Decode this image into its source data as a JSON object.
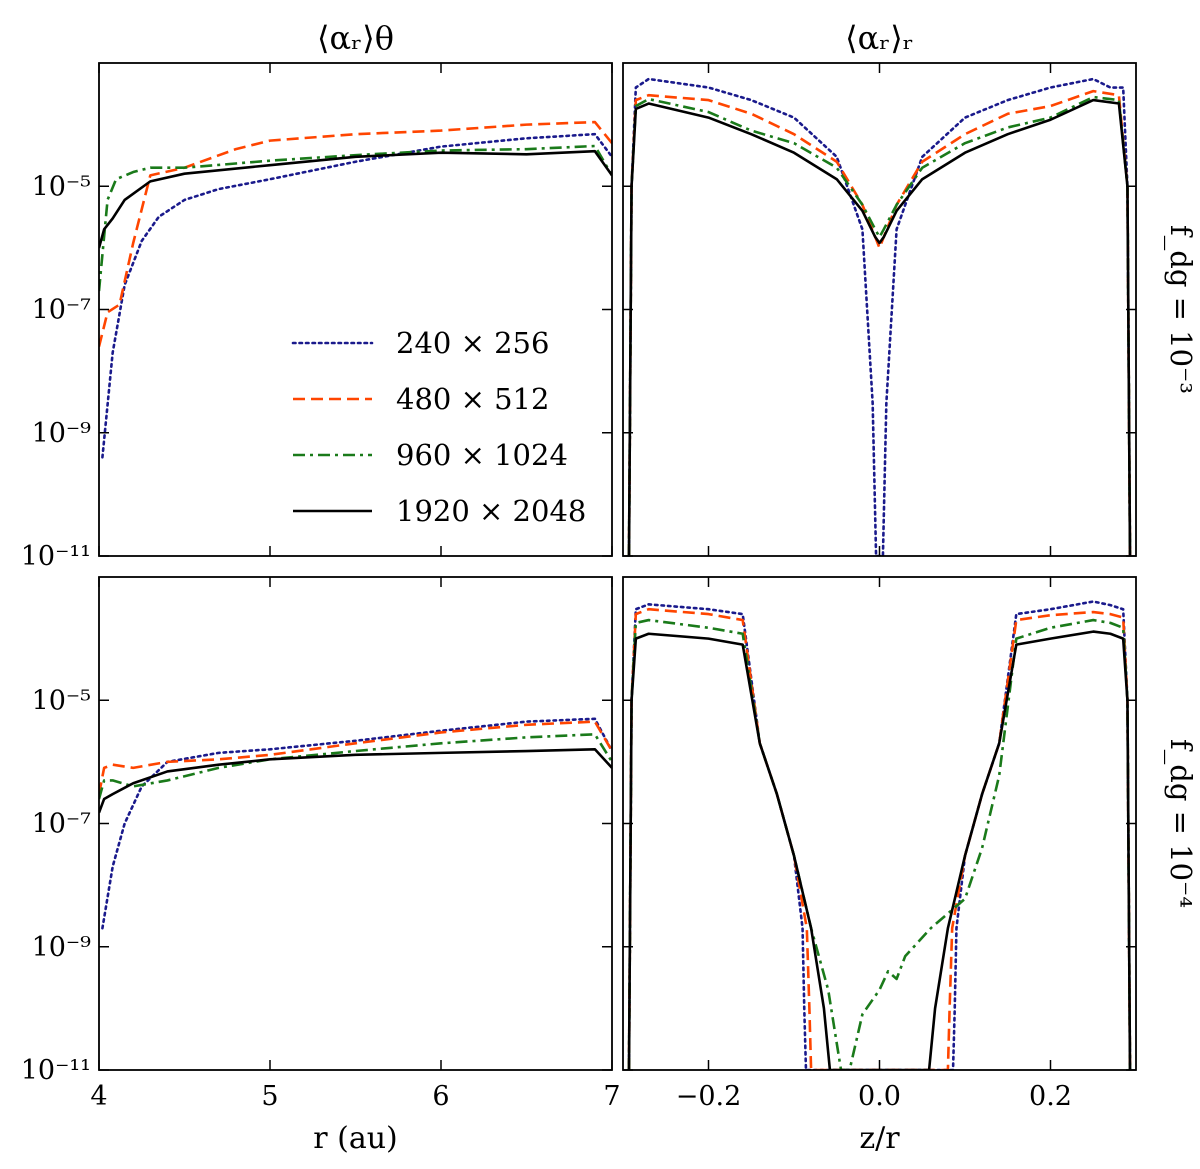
{
  "chart_data": [
    {
      "type": "line",
      "title": "⟨αᵣ⟩θ",
      "row_label": "",
      "xlabel": "",
      "xlim": [
        4,
        7
      ],
      "ylim": [
        1e-11,
        0.001
      ],
      "yscale": "log",
      "xticks": [
        4,
        5,
        6,
        7
      ],
      "xtick_labels": [],
      "yticks": [
        1e-11,
        1e-09,
        1e-07,
        1e-05
      ],
      "ytick_labels": [
        "10⁻¹¹",
        "10⁻⁹",
        "10⁻⁷",
        "10⁻⁵"
      ],
      "series": [
        {
          "name": "240 × 256",
          "color": "#1a1a8c",
          "dash": "dotted",
          "x": [
            4.02,
            4.08,
            4.15,
            4.25,
            4.35,
            4.5,
            4.7,
            5.0,
            5.5,
            6.0,
            6.5,
            6.9,
            7.0
          ],
          "y": [
            4e-10,
            2e-08,
            2.5e-07,
            1.3e-06,
            3.2e-06,
            6e-06,
            9e-06,
            1.3e-05,
            2.5e-05,
            4.4e-05,
            6e-05,
            7e-05,
            3e-05
          ]
        },
        {
          "name": "480 × 512",
          "color": "#ff4500",
          "dash": "dashed",
          "x": [
            4.0,
            4.05,
            4.12,
            4.2,
            4.3,
            4.5,
            4.8,
            5.0,
            5.5,
            6.0,
            6.5,
            6.9,
            7.0
          ],
          "y": [
            2.5e-08,
            9e-08,
            1.2e-07,
            1.2e-06,
            1.5e-05,
            2e-05,
            4e-05,
            5.5e-05,
            7e-05,
            8e-05,
            0.0001,
            0.00011,
            5e-05
          ]
        },
        {
          "name": "960 × 1024",
          "color": "#1a7a1a",
          "dash": "dashdot",
          "x": [
            4.0,
            4.05,
            4.1,
            4.2,
            4.3,
            4.5,
            5.0,
            5.5,
            6.0,
            6.5,
            6.9,
            7.0
          ],
          "y": [
            2e-07,
            6e-06,
            1.3e-05,
            1.7e-05,
            2e-05,
            2e-05,
            2.6e-05,
            3.2e-05,
            3.8e-05,
            4e-05,
            4.5e-05,
            1.5e-05
          ]
        },
        {
          "name": "1920 × 2048",
          "color": "#000000",
          "dash": "solid",
          "x": [
            4.0,
            4.03,
            4.08,
            4.15,
            4.3,
            4.5,
            5.0,
            5.5,
            6.0,
            6.5,
            6.9,
            7.0
          ],
          "y": [
            1e-06,
            2e-06,
            3e-06,
            6e-06,
            1.2e-05,
            1.6e-05,
            2.2e-05,
            3e-05,
            3.5e-05,
            3.3e-05,
            3.7e-05,
            1.5e-05
          ]
        }
      ]
    },
    {
      "type": "line",
      "title": "⟨αᵣ⟩ᵣ",
      "row_label": "f_dg = 10⁻³",
      "xlabel": "",
      "xlim": [
        -0.3,
        0.3
      ],
      "ylim": [
        1e-11,
        0.001
      ],
      "yscale": "log",
      "xticks": [
        -0.2,
        0.0,
        0.2
      ],
      "xtick_labels": [],
      "yticks": [
        1e-11,
        1e-09,
        1e-07,
        1e-05
      ],
      "ytick_labels": [],
      "series": [
        {
          "name": "240 × 256",
          "color": "#1a1a8c",
          "dash": "dotted",
          "x": [
            -0.293,
            -0.29,
            -0.285,
            -0.27,
            -0.2,
            -0.15,
            -0.1,
            -0.05,
            -0.02,
            -0.008,
            -0.004,
            0.0,
            0.004,
            0.008,
            0.02,
            0.05,
            0.1,
            0.15,
            0.2,
            0.25,
            0.27,
            0.285,
            0.29,
            0.293
          ],
          "y": [
            1e-11,
            1e-05,
            0.0004,
            0.00055,
            0.0004,
            0.00025,
            0.00013,
            3e-05,
            2e-06,
            3e-09,
            1e-11,
            1e-11,
            1e-11,
            3e-09,
            2e-06,
            3e-05,
            0.00013,
            0.00025,
            0.0004,
            0.00055,
            0.0004,
            0.0004,
            1e-05,
            1e-11
          ]
        },
        {
          "name": "480 × 512",
          "color": "#ff4500",
          "dash": "dashed",
          "x": [
            -0.293,
            -0.29,
            -0.285,
            -0.27,
            -0.2,
            -0.15,
            -0.1,
            -0.05,
            -0.02,
            -0.005,
            0.0,
            0.005,
            0.02,
            0.05,
            0.1,
            0.15,
            0.2,
            0.25,
            0.28,
            0.29,
            0.293
          ],
          "y": [
            1e-11,
            1e-05,
            0.00025,
            0.0003,
            0.00025,
            0.00015,
            7e-05,
            2.5e-05,
            5e-06,
            1.5e-06,
            1e-06,
            1.5e-06,
            5e-06,
            2.5e-05,
            7e-05,
            0.00015,
            0.0002,
            0.00035,
            0.0003,
            1e-05,
            1e-11
          ]
        },
        {
          "name": "960 × 1024",
          "color": "#1a7a1a",
          "dash": "dashdot",
          "x": [
            -0.293,
            -0.29,
            -0.285,
            -0.27,
            -0.2,
            -0.15,
            -0.1,
            -0.05,
            -0.02,
            -0.005,
            0.0,
            0.005,
            0.02,
            0.05,
            0.1,
            0.15,
            0.2,
            0.25,
            0.28,
            0.29,
            0.293
          ],
          "y": [
            1e-11,
            1e-05,
            0.0002,
            0.00026,
            0.00016,
            8e-05,
            5e-05,
            2e-05,
            5e-06,
            2e-06,
            1.5e-06,
            2e-06,
            5e-06,
            2e-05,
            5e-05,
            9e-05,
            0.00013,
            0.00028,
            0.00025,
            1e-05,
            1e-11
          ]
        },
        {
          "name": "1920 × 2048",
          "color": "#000000",
          "dash": "solid",
          "x": [
            -0.293,
            -0.29,
            -0.285,
            -0.27,
            -0.2,
            -0.15,
            -0.1,
            -0.05,
            -0.02,
            -0.005,
            0.0,
            0.005,
            0.02,
            0.05,
            0.1,
            0.15,
            0.2,
            0.25,
            0.28,
            0.29,
            0.293
          ],
          "y": [
            1e-11,
            1e-05,
            0.00018,
            0.00022,
            0.00013,
            7e-05,
            3.5e-05,
            1.3e-05,
            4e-06,
            1.5e-06,
            1.2e-06,
            1.5e-06,
            4e-06,
            1.3e-05,
            3.5e-05,
            7e-05,
            0.00012,
            0.00025,
            0.00022,
            1e-05,
            1e-11
          ]
        }
      ]
    },
    {
      "type": "line",
      "title": "",
      "row_label": "",
      "xlabel": "r (au)",
      "xlim": [
        4,
        7
      ],
      "ylim": [
        1e-11,
        0.001
      ],
      "yscale": "log",
      "xticks": [
        4,
        5,
        6,
        7
      ],
      "xtick_labels": [
        "4",
        "5",
        "6",
        "7"
      ],
      "yticks": [
        1e-11,
        1e-09,
        1e-07,
        1e-05
      ],
      "ytick_labels": [
        "10⁻¹¹",
        "10⁻⁹",
        "10⁻⁷",
        "10⁻⁵"
      ],
      "series": [
        {
          "name": "240 × 256",
          "color": "#1a1a8c",
          "dash": "dotted",
          "x": [
            4.02,
            4.08,
            4.15,
            4.25,
            4.4,
            4.7,
            5.0,
            5.5,
            6.0,
            6.5,
            6.9,
            7.0
          ],
          "y": [
            2e-09,
            2e-08,
            1e-07,
            4e-07,
            1e-06,
            1.4e-06,
            1.6e-06,
            2.2e-06,
            3.2e-06,
            4.5e-06,
            5e-06,
            1.5e-06
          ]
        },
        {
          "name": "480 × 512",
          "color": "#ff4500",
          "dash": "dashed",
          "x": [
            4.0,
            4.03,
            4.08,
            4.2,
            4.4,
            4.7,
            5.0,
            5.5,
            6.0,
            6.5,
            6.9,
            7.0
          ],
          "y": [
            3e-07,
            8e-07,
            9e-07,
            8e-07,
            1e-06,
            1.1e-06,
            1.3e-06,
            2e-06,
            3e-06,
            4e-06,
            4.5e-06,
            1.5e-06
          ]
        },
        {
          "name": "960 × 1024",
          "color": "#1a7a1a",
          "dash": "dashdot",
          "x": [
            4.0,
            4.03,
            4.08,
            4.2,
            4.4,
            4.7,
            5.0,
            5.5,
            6.0,
            6.5,
            6.9,
            7.0
          ],
          "y": [
            2.5e-07,
            5e-07,
            5e-07,
            4e-07,
            5e-07,
            8e-07,
            1.1e-06,
            1.5e-06,
            2e-06,
            2.5e-06,
            2.8e-06,
            1e-06
          ]
        },
        {
          "name": "1920 × 2048",
          "color": "#000000",
          "dash": "solid",
          "x": [
            4.0,
            4.03,
            4.08,
            4.2,
            4.4,
            4.7,
            5.0,
            5.5,
            6.0,
            6.5,
            6.9,
            7.0
          ],
          "y": [
            1.5e-07,
            2.5e-07,
            3e-07,
            4.5e-07,
            7e-07,
            9e-07,
            1.1e-06,
            1.3e-06,
            1.4e-06,
            1.5e-06,
            1.6e-06,
            8e-07
          ]
        }
      ]
    },
    {
      "type": "line",
      "title": "",
      "row_label": "f_dg = 10⁻⁴",
      "xlabel": "z/r",
      "xlim": [
        -0.3,
        0.3
      ],
      "ylim": [
        1e-11,
        0.001
      ],
      "yscale": "log",
      "xticks": [
        -0.2,
        0.0,
        0.2
      ],
      "xtick_labels": [
        "−0.2",
        "0.0",
        "0.2"
      ],
      "yticks": [
        1e-11,
        1e-09,
        1e-07,
        1e-05
      ],
      "ytick_labels": [],
      "series": [
        {
          "name": "240 × 256",
          "color": "#1a1a8c",
          "dash": "dotted",
          "x": [
            -0.293,
            -0.29,
            -0.285,
            -0.27,
            -0.2,
            -0.16,
            -0.14,
            -0.12,
            -0.1,
            -0.09,
            -0.088,
            -0.086,
            0.086,
            0.088,
            0.09,
            0.1,
            0.12,
            0.14,
            0.16,
            0.2,
            0.25,
            0.27,
            0.285,
            0.29,
            0.293
          ],
          "y": [
            1e-11,
            1e-05,
            0.0003,
            0.00036,
            0.0003,
            0.00025,
            2e-06,
            3e-07,
            3e-08,
            2e-09,
            1e-10,
            1e-11,
            1e-11,
            1e-10,
            2e-09,
            3e-08,
            3e-07,
            2e-06,
            0.00025,
            0.0003,
            0.0004,
            0.00035,
            0.0003,
            1e-05,
            1e-11
          ]
        },
        {
          "name": "480 × 512",
          "color": "#ff4500",
          "dash": "dashed",
          "x": [
            -0.293,
            -0.29,
            -0.285,
            -0.27,
            -0.2,
            -0.16,
            -0.14,
            -0.12,
            -0.1,
            -0.085,
            -0.082,
            -0.08,
            0.08,
            0.082,
            0.085,
            0.1,
            0.12,
            0.14,
            0.16,
            0.2,
            0.25,
            0.27,
            0.285,
            0.29,
            0.293
          ],
          "y": [
            1e-11,
            1e-05,
            0.00025,
            0.0003,
            0.00025,
            0.0002,
            2e-06,
            3e-07,
            3e-08,
            2e-09,
            1e-10,
            1e-11,
            1e-11,
            1e-10,
            2e-09,
            3e-08,
            3e-07,
            2e-06,
            0.0002,
            0.00024,
            0.00027,
            0.00025,
            0.00022,
            1e-05,
            1e-11
          ]
        },
        {
          "name": "960 × 1024",
          "color": "#1a7a1a",
          "dash": "dashdot",
          "x": [
            -0.293,
            -0.29,
            -0.285,
            -0.27,
            -0.2,
            -0.16,
            -0.14,
            -0.12,
            -0.1,
            -0.08,
            -0.06,
            -0.045,
            -0.04,
            -0.035,
            -0.02,
            0.0,
            0.01,
            0.02,
            0.03,
            0.06,
            0.1,
            0.12,
            0.14,
            0.16,
            0.2,
            0.25,
            0.27,
            0.285,
            0.29,
            0.293
          ],
          "y": [
            1e-11,
            1e-05,
            0.00018,
            0.0002,
            0.00015,
            0.00012,
            2e-06,
            3e-07,
            3e-08,
            2e-09,
            2e-10,
            1e-11,
            1e-11,
            1e-11,
            8e-11,
            2e-10,
            4e-10,
            3e-10,
            7e-10,
            2e-09,
            6e-09,
            4e-08,
            6e-07,
            0.0001,
            0.00015,
            0.0002,
            0.00018,
            0.00015,
            1e-05,
            1e-11
          ]
        },
        {
          "name": "1920 × 2048",
          "color": "#000000",
          "dash": "solid",
          "x": [
            -0.293,
            -0.29,
            -0.285,
            -0.27,
            -0.2,
            -0.16,
            -0.14,
            -0.12,
            -0.1,
            -0.08,
            -0.065,
            -0.058,
            -0.055,
            0.055,
            0.058,
            0.065,
            0.08,
            0.1,
            0.12,
            0.14,
            0.16,
            0.2,
            0.25,
            0.27,
            0.285,
            0.29,
            0.293
          ],
          "y": [
            1e-11,
            1e-05,
            0.0001,
            0.00012,
            0.0001,
            8e-05,
            2e-06,
            3e-07,
            3e-08,
            2e-09,
            1e-10,
            1e-11,
            1e-11,
            1e-11,
            1e-11,
            1e-10,
            2e-09,
            3e-08,
            3e-07,
            2e-06,
            8e-05,
            0.0001,
            0.00013,
            0.00012,
            0.0001,
            1e-05,
            1e-11
          ]
        }
      ]
    }
  ],
  "legend": {
    "placement": "bottom-right of top-left panel",
    "entries": [
      "240 × 256",
      "480 × 512",
      "960 × 1024",
      "1920 × 2048"
    ]
  }
}
